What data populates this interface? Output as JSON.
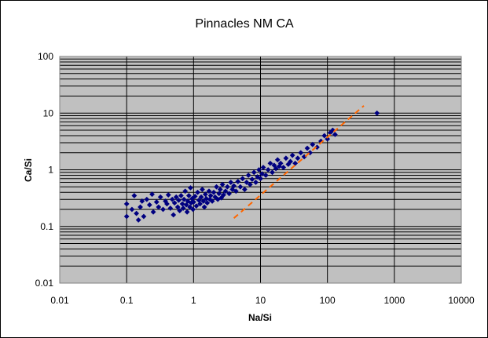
{
  "chart_data": {
    "type": "scatter",
    "title": "Pinnacles NM CA",
    "xlabel": "Na/Si",
    "ylabel": "Ca/Si",
    "x_scale": "log",
    "y_scale": "log",
    "xlim": [
      0.01,
      10000
    ],
    "ylim": [
      0.01,
      100
    ],
    "x_ticks": [
      "0.01",
      "0.1",
      "1",
      "10",
      "100",
      "1000",
      "10000"
    ],
    "y_ticks": [
      "0.01",
      "0.1",
      "1",
      "10",
      "100"
    ],
    "grid": "horizontal major and minor, vertical major",
    "plot_background": "#c0c0c0",
    "marker_color": "#000080",
    "trendline_color": "#ff6600",
    "trendline": {
      "style": "dashed",
      "x": [
        4,
        350
      ],
      "y": [
        0.14,
        13.5
      ]
    },
    "series": [
      {
        "marker": "diamond",
        "points": [
          [
            0.1,
            0.15
          ],
          [
            0.1,
            0.25
          ],
          [
            0.12,
            0.2
          ],
          [
            0.13,
            0.35
          ],
          [
            0.14,
            0.17
          ],
          [
            0.15,
            0.13
          ],
          [
            0.16,
            0.22
          ],
          [
            0.17,
            0.28
          ],
          [
            0.18,
            0.15
          ],
          [
            0.2,
            0.3
          ],
          [
            0.22,
            0.24
          ],
          [
            0.24,
            0.37
          ],
          [
            0.25,
            0.18
          ],
          [
            0.28,
            0.27
          ],
          [
            0.3,
            0.22
          ],
          [
            0.32,
            0.33
          ],
          [
            0.35,
            0.2
          ],
          [
            0.38,
            0.28
          ],
          [
            0.4,
            0.25
          ],
          [
            0.42,
            0.36
          ],
          [
            0.45,
            0.21
          ],
          [
            0.48,
            0.3
          ],
          [
            0.5,
            0.16
          ],
          [
            0.52,
            0.26
          ],
          [
            0.55,
            0.33
          ],
          [
            0.58,
            0.22
          ],
          [
            0.6,
            0.29
          ],
          [
            0.62,
            0.19
          ],
          [
            0.65,
            0.35
          ],
          [
            0.68,
            0.25
          ],
          [
            0.7,
            0.21
          ],
          [
            0.72,
            0.3
          ],
          [
            0.75,
            0.42
          ],
          [
            0.78,
            0.24
          ],
          [
            0.8,
            0.18
          ],
          [
            0.82,
            0.28
          ],
          [
            0.85,
            0.35
          ],
          [
            0.88,
            0.22
          ],
          [
            0.9,
            0.48
          ],
          [
            0.92,
            0.26
          ],
          [
            0.95,
            0.31
          ],
          [
            0.98,
            0.2
          ],
          [
            1.0,
            0.27
          ],
          [
            1.05,
            0.34
          ],
          [
            1.1,
            0.23
          ],
          [
            1.15,
            0.4
          ],
          [
            1.2,
            0.29
          ],
          [
            1.25,
            0.25
          ],
          [
            1.3,
            0.33
          ],
          [
            1.35,
            0.45
          ],
          [
            1.4,
            0.28
          ],
          [
            1.45,
            0.22
          ],
          [
            1.5,
            0.37
          ],
          [
            1.55,
            0.31
          ],
          [
            1.6,
            0.26
          ],
          [
            1.7,
            0.42
          ],
          [
            1.75,
            0.3
          ],
          [
            1.8,
            0.35
          ],
          [
            1.9,
            0.28
          ],
          [
            2.0,
            0.4
          ],
          [
            2.1,
            0.33
          ],
          [
            2.2,
            0.5
          ],
          [
            2.3,
            0.3
          ],
          [
            2.4,
            0.38
          ],
          [
            2.5,
            0.45
          ],
          [
            2.6,
            0.32
          ],
          [
            2.7,
            0.55
          ],
          [
            2.8,
            0.36
          ],
          [
            3.0,
            0.42
          ],
          [
            3.2,
            0.5
          ],
          [
            3.4,
            0.38
          ],
          [
            3.6,
            0.6
          ],
          [
            3.8,
            0.45
          ],
          [
            4.0,
            0.52
          ],
          [
            4.3,
            0.42
          ],
          [
            4.6,
            0.62
          ],
          [
            5.0,
            0.5
          ],
          [
            5.4,
            0.7
          ],
          [
            5.8,
            0.45
          ],
          [
            6.2,
            0.6
          ],
          [
            6.6,
            0.8
          ],
          [
            7.0,
            0.55
          ],
          [
            7.5,
            0.68
          ],
          [
            8.0,
            0.9
          ],
          [
            8.5,
            0.6
          ],
          [
            9.0,
            0.75
          ],
          [
            9.5,
            1.0
          ],
          [
            10.0,
            0.7
          ],
          [
            10.5,
            0.85
          ],
          [
            11.0,
            1.1
          ],
          [
            12.0,
            0.8
          ],
          [
            13.0,
            1.0
          ],
          [
            14.0,
            1.3
          ],
          [
            15.0,
            0.9
          ],
          [
            16.0,
            1.2
          ],
          [
            17.0,
            1.05
          ],
          [
            18.0,
            1.5
          ],
          [
            19.0,
            1.15
          ],
          [
            20.0,
            1.3
          ],
          [
            22.0,
            1.1
          ],
          [
            24.0,
            1.6
          ],
          [
            26.0,
            1.25
          ],
          [
            28.0,
            1.4
          ],
          [
            30.0,
            1.8
          ],
          [
            33.0,
            1.3
          ],
          [
            36.0,
            1.6
          ],
          [
            40.0,
            2.0
          ],
          [
            45.0,
            1.7
          ],
          [
            50.0,
            2.4
          ],
          [
            55.0,
            2.0
          ],
          [
            60.0,
            2.8
          ],
          [
            70.0,
            2.5
          ],
          [
            80.0,
            3.2
          ],
          [
            90.0,
            4.0
          ],
          [
            100.0,
            3.5
          ],
          [
            110.0,
            4.5
          ],
          [
            120.0,
            5.0
          ],
          [
            130.0,
            4.2
          ],
          [
            550.0,
            10.0
          ]
        ]
      }
    ]
  }
}
